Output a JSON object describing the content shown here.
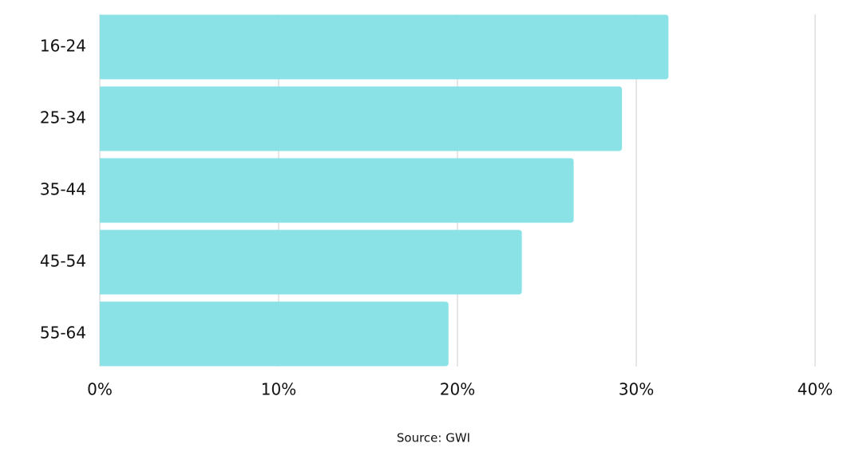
{
  "chart_data": {
    "type": "bar",
    "orientation": "horizontal",
    "categories": [
      "16-24",
      "25-34",
      "35-44",
      "45-54",
      "55-64"
    ],
    "values": [
      31.8,
      29.2,
      26.5,
      23.6,
      19.5
    ],
    "color": "#8ae2e6",
    "xlim": [
      0,
      40
    ],
    "xticks": [
      {
        "value": 0,
        "label": "0%"
      },
      {
        "value": 10,
        "label": "10%"
      },
      {
        "value": 20,
        "label": "20%"
      },
      {
        "value": 30,
        "label": "30%"
      },
      {
        "value": 40,
        "label": "40%"
      }
    ],
    "grid": true,
    "source": "Source: GWI"
  }
}
